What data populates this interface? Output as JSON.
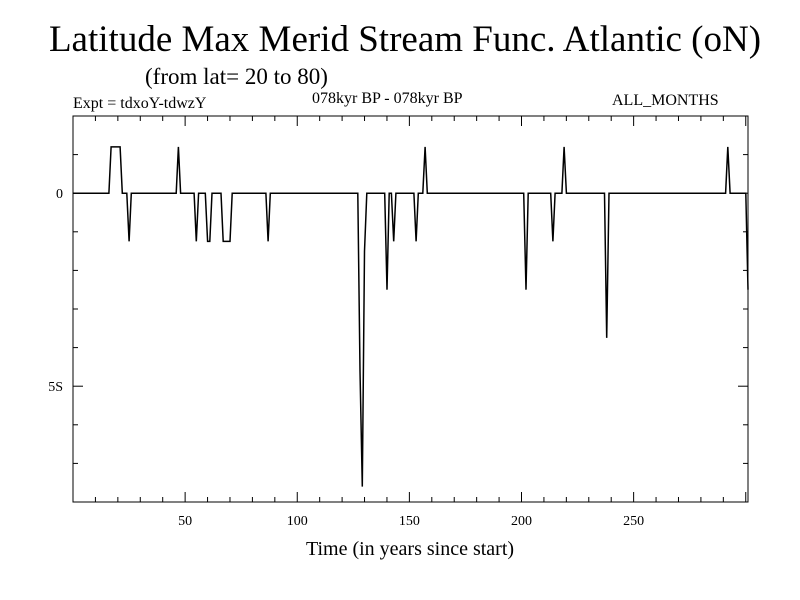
{
  "chart_data": {
    "type": "line",
    "title": "Latitude Max Merid Stream Func. Atlantic (oN)",
    "subtitle": "(from lat= 20 to 80)",
    "header_left": "Expt = tdxoY-tdwzY",
    "header_center": "078kyr BP - 078kyr BP",
    "header_right": "ALL_MONTHS",
    "xlabel": "Time (in years since start)",
    "ylabel": "",
    "xlim": [
      0,
      301
    ],
    "ylim": [
      -8,
      2
    ],
    "xticks": [
      {
        "value": 50,
        "label": "50"
      },
      {
        "value": 100,
        "label": "100"
      },
      {
        "value": 150,
        "label": "150"
      },
      {
        "value": 200,
        "label": "200"
      },
      {
        "value": 250,
        "label": "250"
      }
    ],
    "yticks": [
      {
        "value": 0,
        "label": "0"
      },
      {
        "value": -5,
        "label": "5S"
      }
    ],
    "series": [
      {
        "color": "#000000",
        "points": [
          [
            0,
            0
          ],
          [
            16,
            0
          ],
          [
            17,
            1.2
          ],
          [
            21,
            1.2
          ],
          [
            22,
            0
          ],
          [
            24,
            0
          ],
          [
            25,
            -1.25
          ],
          [
            26,
            0
          ],
          [
            46,
            0
          ],
          [
            47,
            1.2
          ],
          [
            48,
            0
          ],
          [
            54,
            0
          ],
          [
            55,
            -1.25
          ],
          [
            56,
            0
          ],
          [
            59,
            0
          ],
          [
            60,
            -1.25
          ],
          [
            61,
            -1.25
          ],
          [
            62,
            0
          ],
          [
            66,
            0
          ],
          [
            67,
            -1.25
          ],
          [
            70,
            -1.25
          ],
          [
            71,
            0
          ],
          [
            86,
            0
          ],
          [
            87,
            -1.25
          ],
          [
            88,
            0
          ],
          [
            98,
            0
          ],
          [
            100,
            0
          ],
          [
            127,
            0
          ],
          [
            128,
            -4.6
          ],
          [
            129,
            -7.6
          ],
          [
            130,
            -1.5
          ],
          [
            131,
            0
          ],
          [
            139,
            0
          ],
          [
            140,
            -2.5
          ],
          [
            141,
            0
          ],
          [
            142,
            0
          ],
          [
            143,
            -1.25
          ],
          [
            144,
            0
          ],
          [
            152,
            0
          ],
          [
            153,
            -1.25
          ],
          [
            154,
            0
          ],
          [
            156,
            0
          ],
          [
            157,
            1.2
          ],
          [
            158,
            0
          ],
          [
            201,
            0
          ],
          [
            202,
            -2.5
          ],
          [
            203,
            0
          ],
          [
            213,
            0
          ],
          [
            214,
            -1.25
          ],
          [
            215,
            0
          ],
          [
            218,
            0
          ],
          [
            219,
            1.2
          ],
          [
            220,
            0
          ],
          [
            237,
            0
          ],
          [
            238,
            -3.75
          ],
          [
            239,
            0
          ],
          [
            291,
            0
          ],
          [
            292,
            1.2
          ],
          [
            293,
            0
          ],
          [
            300,
            0
          ],
          [
            301,
            -2.5
          ]
        ]
      }
    ],
    "grid": false
  }
}
